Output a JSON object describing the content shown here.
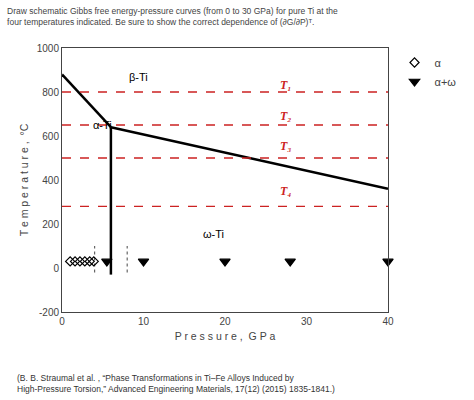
{
  "chart_data": {
    "type": "line",
    "title": "Draw schematic Gibbs free energy-pressure curves (from 0 to 30 GPa) for pure Ti at the",
    "subtitle": "four temperatures indicated. Be sure to show the correct dependence of (∂G/∂P)ᵀ.",
    "xlabel": "P r e s s u r e ,  G P a",
    "ylabel": "T e m p e r a t u r e ,  °C",
    "xlim": [
      0,
      40
    ],
    "ylim": [
      -200,
      1000
    ],
    "xticks": [
      0,
      10,
      20,
      30,
      40
    ],
    "yticks": [
      -200,
      0,
      200,
      400,
      600,
      800,
      1000
    ],
    "grid": false,
    "legend": "upper right",
    "series": [
      {
        "type": "line",
        "x": [
          0,
          6
        ],
        "values": [
          880,
          640
        ],
        "color": "black",
        "line_style": "solid"
      },
      {
        "type": "line",
        "x": [
          6,
          6
        ],
        "values": [
          640,
          -30
        ],
        "color": "black",
        "line_style": "solid"
      },
      {
        "type": "line",
        "x": [
          6,
          40
        ],
        "values": [
          640,
          360
        ],
        "color": "black",
        "line_style": "solid"
      },
      {
        "type": "line",
        "x": [
          4,
          4
        ],
        "values": [
          -20,
          100
        ],
        "color": "black",
        "line_style": "dotted"
      },
      {
        "type": "line",
        "x": [
          8,
          8
        ],
        "values": [
          -20,
          100
        ],
        "color": "black",
        "line_style": "dotted"
      },
      {
        "type": "scatter",
        "name": "α",
        "x": [
          1.0,
          1.6,
          2.2,
          2.8,
          3.4,
          3.9
        ],
        "values": [
          30,
          30,
          30,
          30,
          30,
          30
        ],
        "color": "black",
        "marker": "diamond-open"
      },
      {
        "type": "scatter",
        "name": "α+ω",
        "x": [
          5.5,
          10,
          20,
          28,
          40
        ],
        "values": [
          30,
          30,
          30,
          30,
          30
        ],
        "color": "black",
        "marker": "triangle-down"
      }
    ],
    "hlines": {
      "y": [
        800,
        650,
        500,
        280
      ],
      "color": "#cc2222",
      "line_style": "dashed"
    },
    "annotations": [
      {
        "text": "T₁",
        "x": 26.5,
        "y": 830,
        "color": "#cc2222"
      },
      {
        "text": "T₂",
        "x": 26.5,
        "y": 690,
        "color": "#cc2222"
      },
      {
        "text": "T₃",
        "x": 26.5,
        "y": 555,
        "color": "#cc2222"
      },
      {
        "text": "T₄",
        "x": 26.5,
        "y": 350,
        "color": "#cc2222"
      },
      {
        "text": "β-Ti",
        "x": 8,
        "y": 870,
        "color": "black"
      },
      {
        "text": "α-Ti",
        "x": 3.5,
        "y": 650,
        "color": "black"
      },
      {
        "text": "ω-Ti",
        "x": 17,
        "y": 155,
        "color": "black"
      }
    ],
    "footnote": [
      "(B. B. Straumal et al. , “Phase Transformations in Ti–Fe Alloys Induced by",
      "High-Pressure Torsion,” Advanced Engineering Materials, 17(12) (2015) 1835-1841.)"
    ]
  }
}
